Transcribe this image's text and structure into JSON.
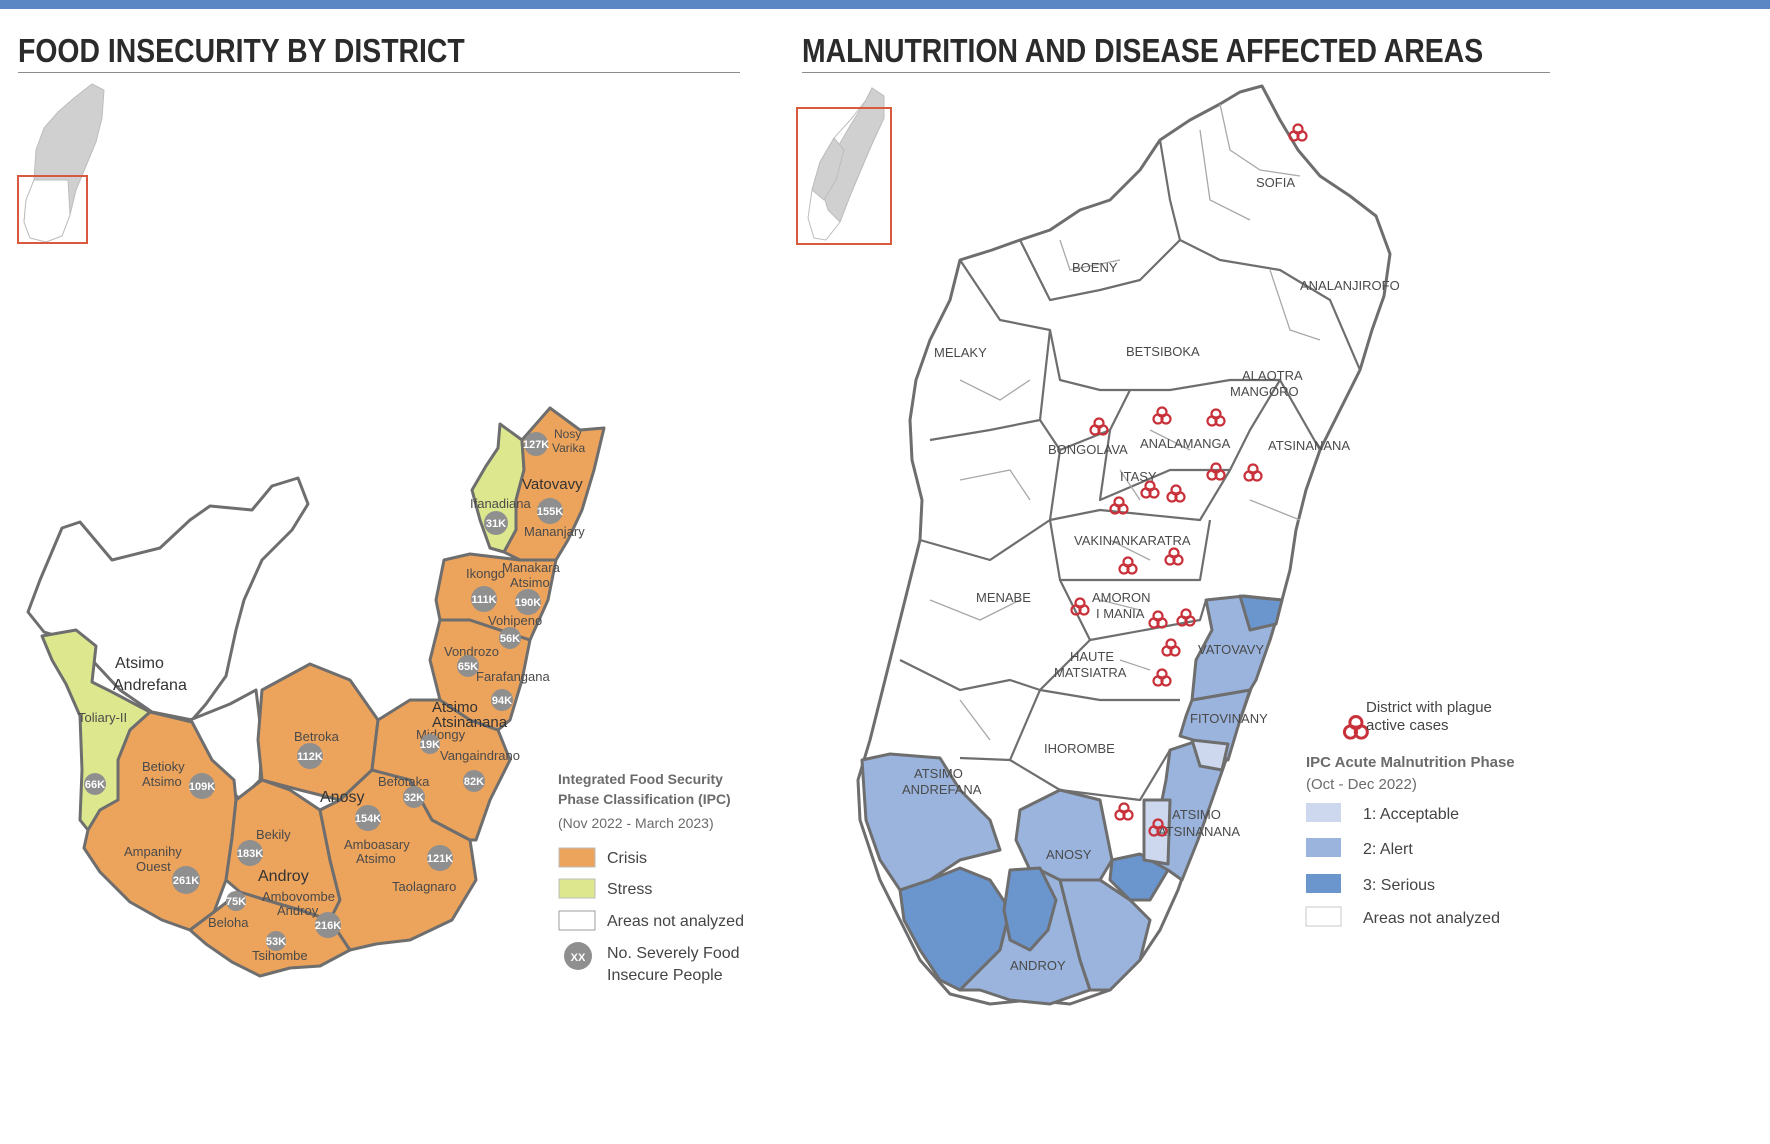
{
  "left_panel": {
    "title": "FOOD INSECURITY BY DISTRICT",
    "legend": {
      "heading_line1": "Integrated Food Security",
      "heading_line2": "Phase Classification (IPC)",
      "period": "(Nov 2022 - March 2023)",
      "items": [
        {
          "label": "Crisis",
          "color": "#eca35c"
        },
        {
          "label": "Stress",
          "color": "#dde88e"
        },
        {
          "label": "Areas not analyzed",
          "color": "#ffffff"
        }
      ],
      "badge_symbol": "XX",
      "badge_label_line1": "No. Severely Food",
      "badge_label_line2": "Insecure People"
    },
    "regions": {
      "atsimo_andrefana": [
        "Atsimo",
        "Andrefana"
      ],
      "anosy": "Anosy",
      "androy": "Androy",
      "vatovavy": "Vatovavy",
      "atsimo_atsinanana": [
        "Atsimo",
        "Atsinanana"
      ]
    },
    "districts": {
      "nosy_varika": [
        "Nosy",
        "Varika"
      ],
      "ifanadiana": "Ifanadiana",
      "mananjary": "Mananjary",
      "ikongo": "Ikongo",
      "manakara": [
        "Manakara",
        "Atsimo"
      ],
      "vohipeno": "Vohipeno",
      "vondrozo": "Vondrozo",
      "farafangana": "Farafangana",
      "midongy": "Midongy",
      "vangaindrano": "Vangaindrano",
      "betroka": "Betroka",
      "befotaka": "Befotaka",
      "toliary_ii": "Toliary-II",
      "betioky": [
        "Betioky",
        "Atsimo"
      ],
      "ampanihy": [
        "Ampanihy",
        "Ouest"
      ],
      "bekily": "Bekily",
      "amboasary": [
        "Amboasary",
        "Atsimo"
      ],
      "ambovombe": [
        "Ambovombe",
        "Androy"
      ],
      "beloha": "Beloha",
      "tsihombe": "Tsihombe",
      "taolagnaro": "Taolagnaro"
    },
    "badges": {
      "nosy_varika": "127K",
      "ifanadiana": "31K",
      "mananjary": "155K",
      "ikongo": "111K",
      "manakara": "190K",
      "vohipeno": "56K",
      "vondrozo": "65K",
      "farafangana": "94K",
      "midongy": "19K",
      "vangaindrano": "82K",
      "befotaka": "32K",
      "betroka": "112K",
      "toliary_ii": "66K",
      "betioky": "109K",
      "ampanihy": "261K",
      "bekily": "183K",
      "amboasary": "154K",
      "taolagnaro": "121K",
      "beloha": "75K",
      "ambovombe": "216K",
      "tsihombe": "53K"
    }
  },
  "right_panel": {
    "title": "MALNUTRITION AND DISEASE AFFECTED AREAS",
    "regions": {
      "sofia": "SOFIA",
      "boeny": "BOENY",
      "analanjirofo": "ANALANJIROFO",
      "melaky": "MELAKY",
      "betsiboka": "BETSIBOKA",
      "alaotra": [
        "ALAOTRA",
        "MANGORO"
      ],
      "bongolava": "BONGOLAVA",
      "analamanga": "ANALAMANGA",
      "atsinanana": "ATSINANANA",
      "itasy": "ITASY",
      "vakinankaratra": "VAKINANKARATRA",
      "menabe": "MENABE",
      "amoron": [
        "AMORON",
        "I MANIA"
      ],
      "vatovavy": "VATOVAVY",
      "haute": [
        "HAUTE",
        "MATSIATRA"
      ],
      "fitovinany": "FITOVINANY",
      "ihorombe": "IHOROMBE",
      "atsimo_andrefana": [
        "ATSIMO",
        "ANDREFANA"
      ],
      "atsimo_atsinanana": [
        "ATSIMO",
        "ATSINANANA"
      ],
      "anosy": "ANOSY",
      "androy": "ANDROY"
    },
    "legend": {
      "plague_line1": "District with plague",
      "plague_line2": "active cases",
      "heading": "IPC Acute Malnutrition Phase",
      "period": "(Oct - Dec 2022)",
      "items": [
        {
          "label": "1: Acceptable",
          "color": "#cdd8ef"
        },
        {
          "label": "2: Alert",
          "color": "#9ab4de"
        },
        {
          "label": "3: Serious",
          "color": "#6b95cd"
        },
        {
          "label": "Areas not analyzed",
          "color": "#ffffff"
        }
      ]
    },
    "plague_color": "#c8313a"
  },
  "colors": {
    "accent_bar": "#5b87c5",
    "inset_box": "#d9593f",
    "inset_land": "#d0d0d0",
    "border": "#6e6e6e"
  }
}
